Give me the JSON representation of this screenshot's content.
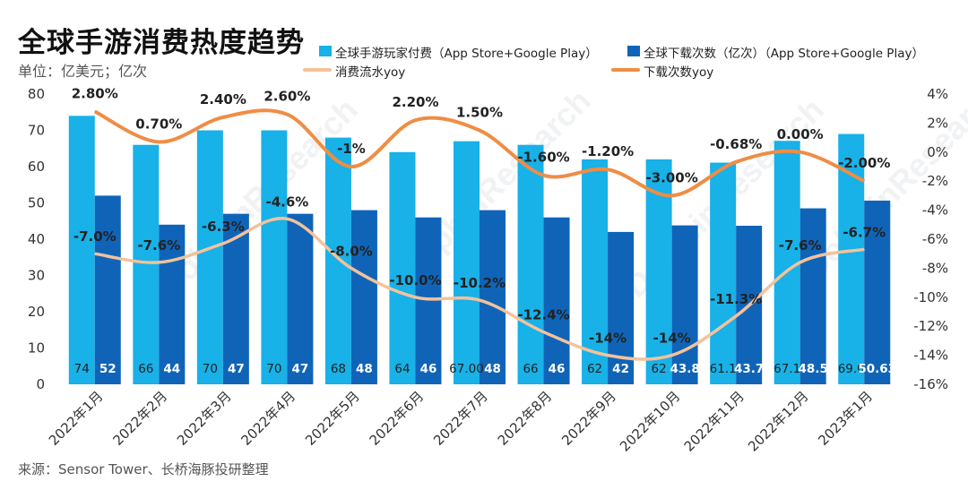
{
  "title": "全球手游消费热度趋势",
  "unit": "单位：亿美元；亿次",
  "source": "来源：Sensor Tower、长桥海豚投研整理",
  "watermark": "DolphinResearch",
  "legend": {
    "spend_bar": "全球手游玩家付费（App Store+Google Play）",
    "download_bar": "全球下载次数（亿次）（App Store+Google Play）",
    "spend_line": "消费流水yoy",
    "download_line": "下载次数yoy"
  },
  "colors": {
    "spend_bar": "#18b1e8",
    "download_bar": "#1064b8",
    "spend_line": "#f4c29a",
    "download_line": "#ef8d45"
  },
  "chart_data": {
    "type": "bar",
    "categories": [
      "2022年1月",
      "2022年2月",
      "2022年3月",
      "2022年4月",
      "2022年5月",
      "2022年6月",
      "2022年7月",
      "2022年8月",
      "2022年9月",
      "2022年10月",
      "2022年11月",
      "2022年12月",
      "2023年1月"
    ],
    "series": [
      {
        "name": "全球手游玩家付费（App Store+Google Play）",
        "type": "bar",
        "axis": "left",
        "values": [
          74,
          66,
          70,
          70,
          68,
          64,
          67,
          66,
          62,
          62,
          61.1,
          67.1,
          69.0
        ],
        "labels": [
          "74",
          "66",
          "70",
          "70",
          "68",
          "64",
          "67.00",
          "66",
          "62",
          "62",
          "61.1",
          "67.1",
          "69.0"
        ]
      },
      {
        "name": "全球下载次数（亿次）（App Store+Google Play）",
        "type": "bar",
        "axis": "left",
        "values": [
          52,
          44,
          47,
          47,
          48,
          46,
          48,
          46,
          42,
          43.8,
          43.7,
          48.5,
          50.63
        ],
        "labels": [
          "52",
          "44",
          "47",
          "47",
          "48",
          "46",
          "48",
          "46",
          "42",
          "43.8",
          "43.7",
          "48.5",
          "50.63"
        ]
      },
      {
        "name": "消费流水yoy",
        "type": "line",
        "axis": "right",
        "values": [
          -7.0,
          -7.6,
          -6.3,
          -4.6,
          -8.0,
          -10.0,
          -10.2,
          -12.4,
          -14,
          -14,
          -11.3,
          -7.6,
          -6.7
        ],
        "labels": [
          "-7.0%",
          "-7.6%",
          "-6.3%",
          "-4.6%",
          "-8.0%",
          "-10.0%",
          "-10.2%",
          "-12.4%",
          "-14%",
          "-14%",
          "-11.3%",
          "-7.6%",
          "-6.7%"
        ]
      },
      {
        "name": "下载次数yoy",
        "type": "line",
        "axis": "right",
        "values": [
          2.8,
          0.7,
          2.4,
          2.6,
          -1,
          2.2,
          1.5,
          -1.6,
          -1.2,
          -3.0,
          -0.68,
          0.0,
          -2.0
        ],
        "labels": [
          "2.80%",
          "0.70%",
          "2.40%",
          "2.60%",
          "-1%",
          "2.20%",
          "1.50%",
          "-1.60%",
          "-1.20%",
          "-3.00%",
          "-0.68%",
          "0.00%",
          "-2.00%"
        ]
      }
    ],
    "y_left": {
      "ticks": [
        "0",
        "10",
        "20",
        "30",
        "40",
        "50",
        "60",
        "70",
        "80"
      ],
      "ylim": [
        0,
        80
      ]
    },
    "y_right": {
      "ticks": [
        "4%",
        "2%",
        "0%",
        "-2%",
        "-4%",
        "-6%",
        "-8%",
        "-10%",
        "-12%",
        "-14%",
        "-16%"
      ],
      "ylim": [
        -16,
        4
      ]
    },
    "legend_position": "top"
  }
}
